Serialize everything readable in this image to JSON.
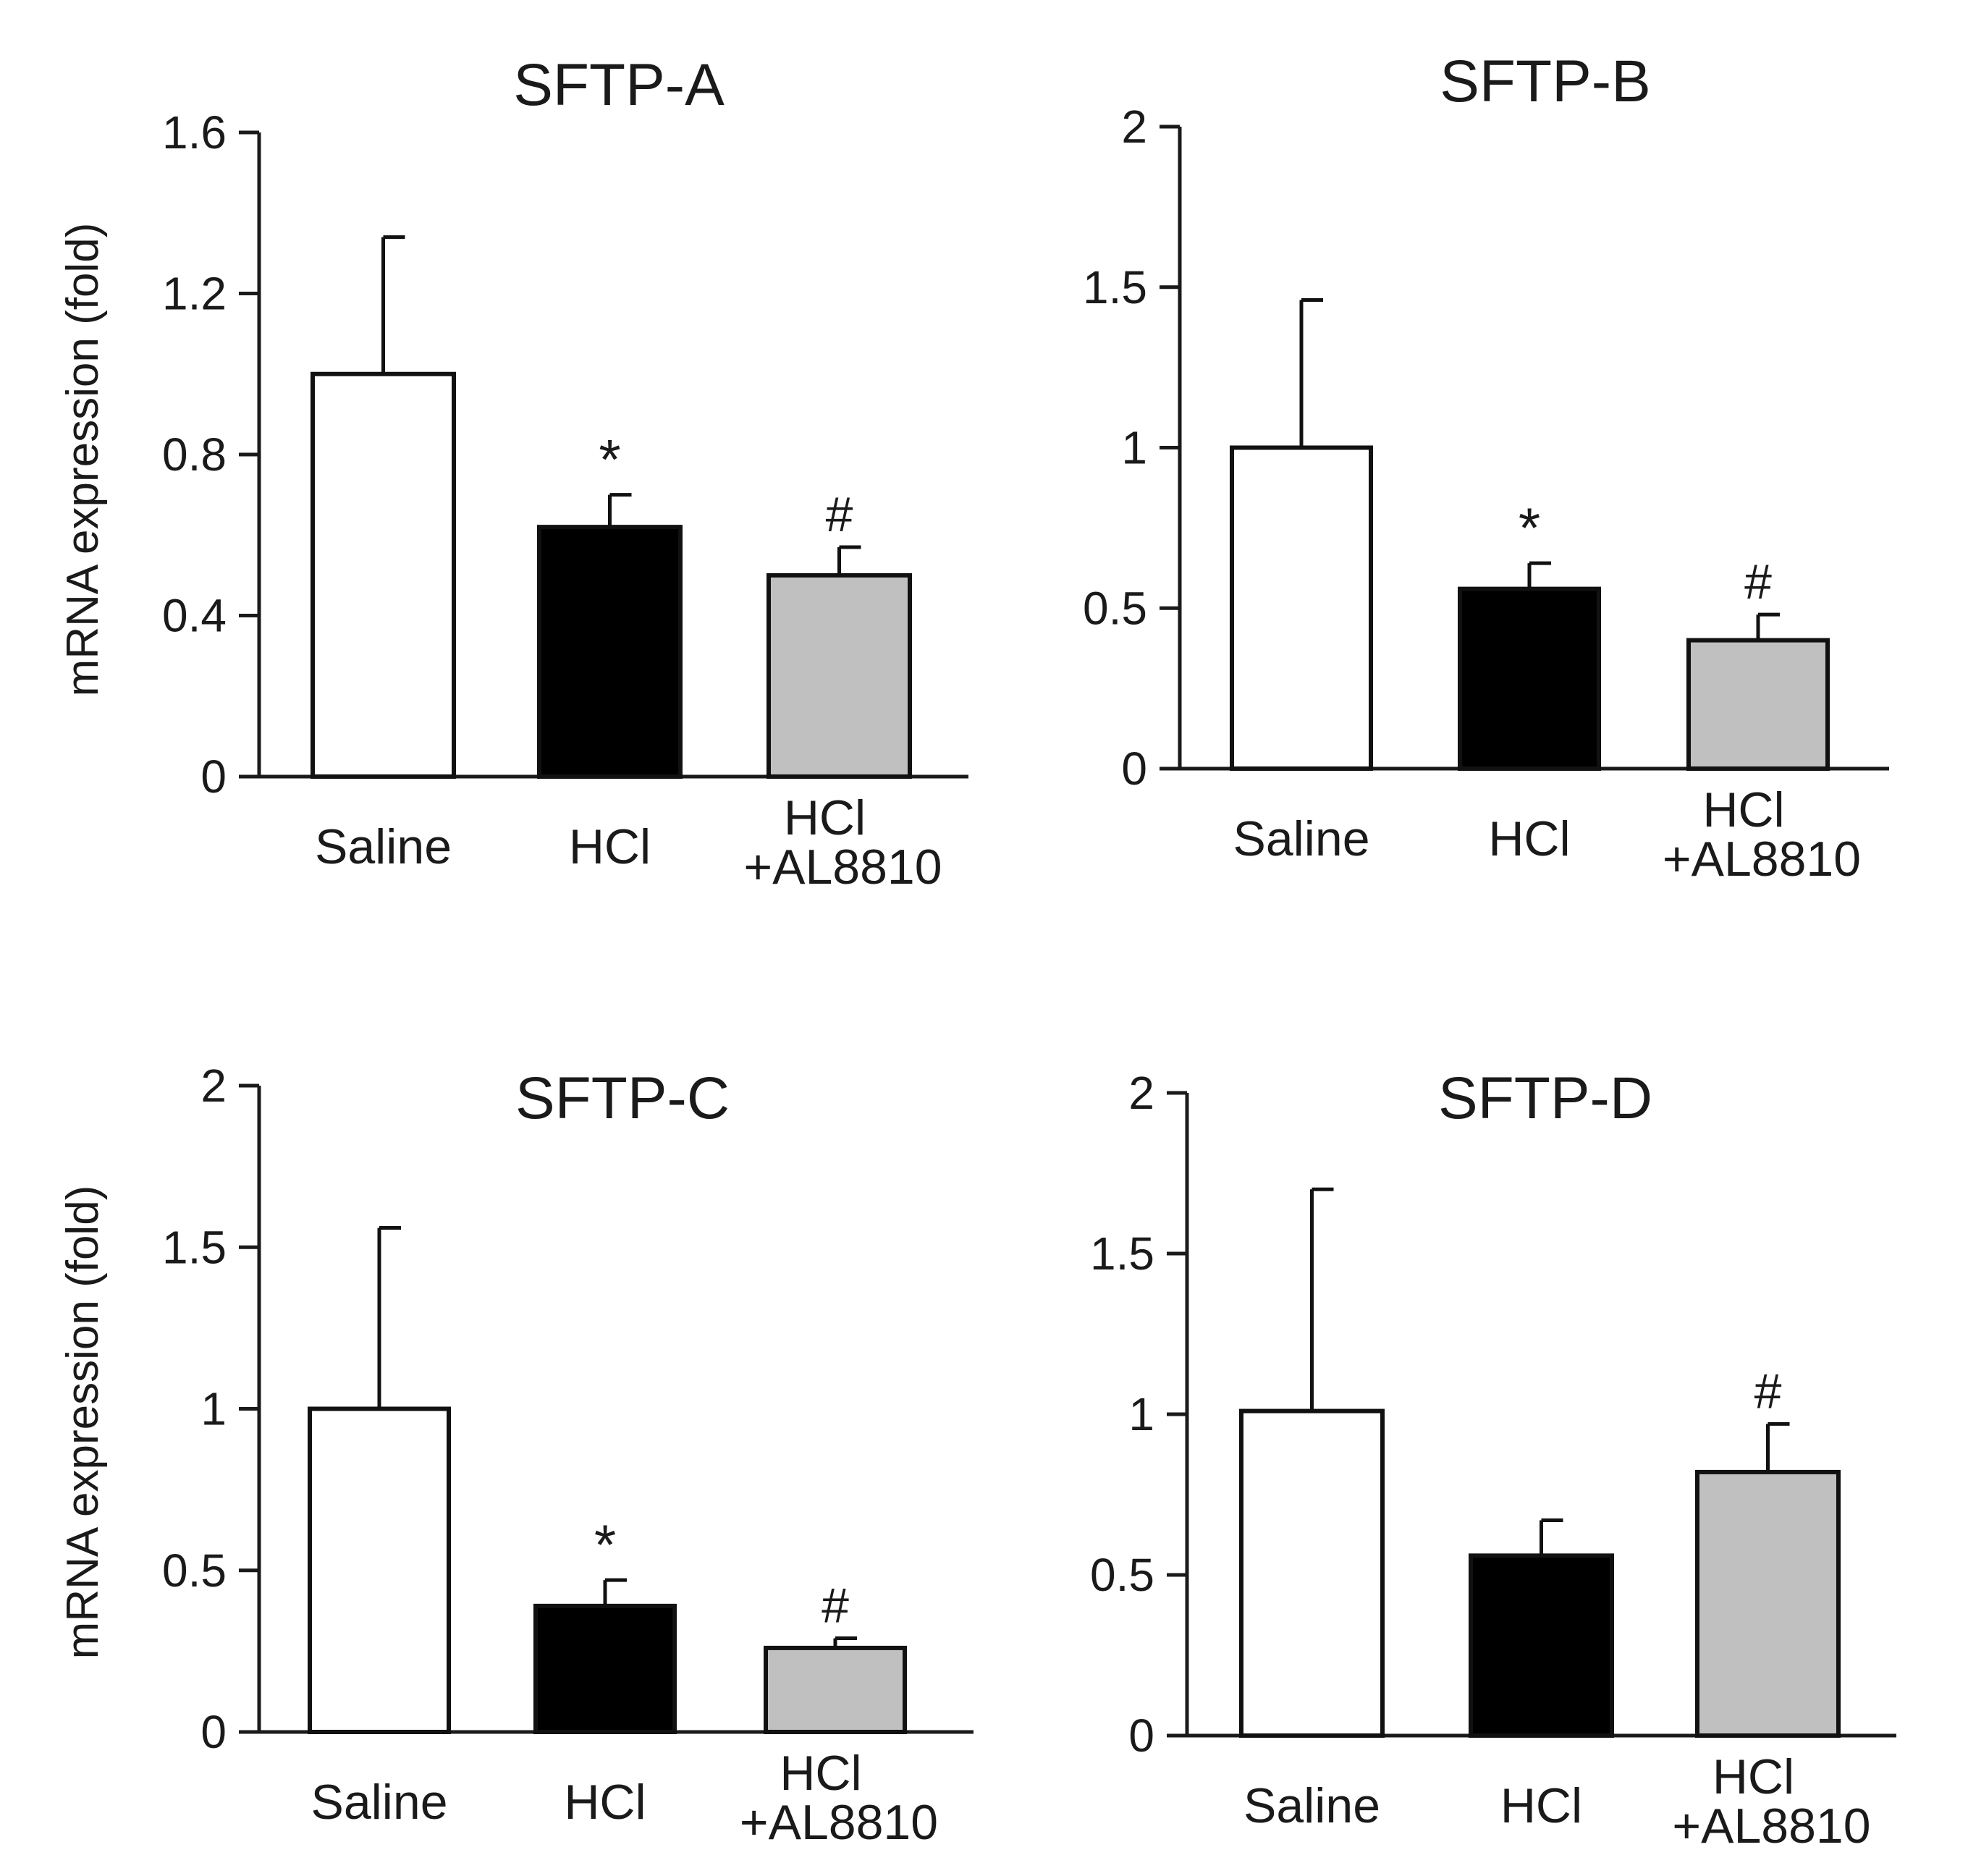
{
  "colors": {
    "axis": "#1a1a1a",
    "bar_stroke": "#111111",
    "saline": "#ffffff",
    "hcl": "#000000",
    "hcl_al8810": "#c0c0c0"
  },
  "y_axis_label": "mRNA expression (fold)",
  "chart_data": [
    {
      "type": "bar",
      "title": "SFTP-A",
      "ylabel": "mRNA expression (fold)",
      "xlabel": "",
      "categories": [
        "Saline",
        "HCl",
        "HCl\n+AL8810"
      ],
      "values": [
        1.0,
        0.62,
        0.5
      ],
      "errors": [
        0.34,
        0.08,
        0.07
      ],
      "annotations": [
        "",
        "*",
        "#"
      ],
      "ylim": [
        0,
        1.6
      ],
      "yticks": [
        0,
        0.4,
        0.8,
        1.2,
        1.6
      ],
      "ytick_labels": [
        "0",
        "0.4",
        "0.8",
        "1.2",
        "1.6"
      ],
      "grid": false
    },
    {
      "type": "bar",
      "title": "SFTP-B",
      "ylabel": "",
      "xlabel": "",
      "categories": [
        "Saline",
        "HCl",
        "HCl\n+AL8810"
      ],
      "values": [
        1.0,
        0.56,
        0.4
      ],
      "errors": [
        0.46,
        0.08,
        0.08
      ],
      "annotations": [
        "",
        "*",
        "#"
      ],
      "ylim": [
        0,
        2
      ],
      "yticks": [
        0,
        0.5,
        1,
        1.5,
        2
      ],
      "ytick_labels": [
        "0",
        "0.5",
        "1",
        "1.5",
        "2"
      ],
      "grid": false
    },
    {
      "type": "bar",
      "title": "SFTP-C",
      "ylabel": "mRNA expression (fold)",
      "xlabel": "",
      "categories": [
        "Saline",
        "HCl",
        "HCl\n+AL8810"
      ],
      "values": [
        1.0,
        0.39,
        0.26
      ],
      "errors": [
        0.56,
        0.08,
        0.03
      ],
      "annotations": [
        "",
        "*",
        "#"
      ],
      "ylim": [
        0,
        2
      ],
      "yticks": [
        0,
        0.5,
        1,
        1.5,
        2
      ],
      "ytick_labels": [
        "0",
        "0.5",
        "1",
        "1.5",
        "2"
      ],
      "grid": false
    },
    {
      "type": "bar",
      "title": "SFTP-D",
      "ylabel": "",
      "xlabel": "",
      "categories": [
        "Saline",
        "HCl",
        "HCl\n+AL8810"
      ],
      "values": [
        1.01,
        0.56,
        0.82
      ],
      "errors": [
        0.69,
        0.11,
        0.15
      ],
      "annotations": [
        "",
        "",
        "#"
      ],
      "ylim": [
        0,
        2
      ],
      "yticks": [
        0,
        0.5,
        1,
        1.5,
        2
      ],
      "ytick_labels": [
        "0",
        "0.5",
        "1",
        "1.5",
        "2"
      ],
      "grid": false
    }
  ]
}
